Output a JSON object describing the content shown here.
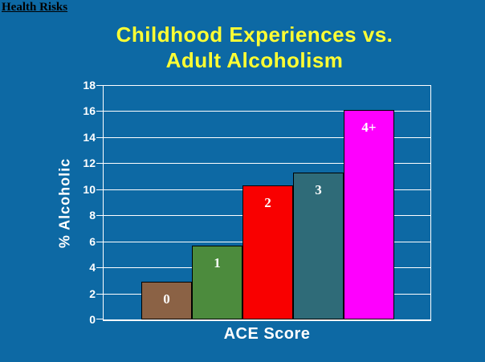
{
  "page": {
    "background_color": "#0d69a4",
    "header_link": "Health Risks"
  },
  "title": {
    "line1": "Childhood Experiences vs.",
    "line2": "Adult Alcoholism",
    "color": "#ffff33"
  },
  "chart_data": {
    "type": "bar",
    "title": "Childhood Experiences vs. Adult Alcoholism",
    "categories": [
      "0",
      "1",
      "2",
      "3",
      "4+"
    ],
    "values": [
      2.9,
      5.7,
      10.3,
      11.3,
      16.1
    ],
    "bar_colors": [
      "#8b6245",
      "#4c8b3d",
      "#f90000",
      "#2f6b78",
      "#fe00fe"
    ],
    "bar_border_color": "#000000",
    "bar_label_color": "#ffffff",
    "xlabel": "ACE Score",
    "ylabel": "% Alcoholic",
    "ylim": [
      0,
      18
    ],
    "yticks": [
      0,
      2,
      4,
      6,
      8,
      10,
      12,
      14,
      16,
      18
    ],
    "ytick_step": 2,
    "grid": true,
    "gridline_color": "#ffffff",
    "axis_color": "#ffffff",
    "tick_label_color": "#ffffff",
    "legend": "none",
    "bar_labels_position": "inside-top"
  }
}
